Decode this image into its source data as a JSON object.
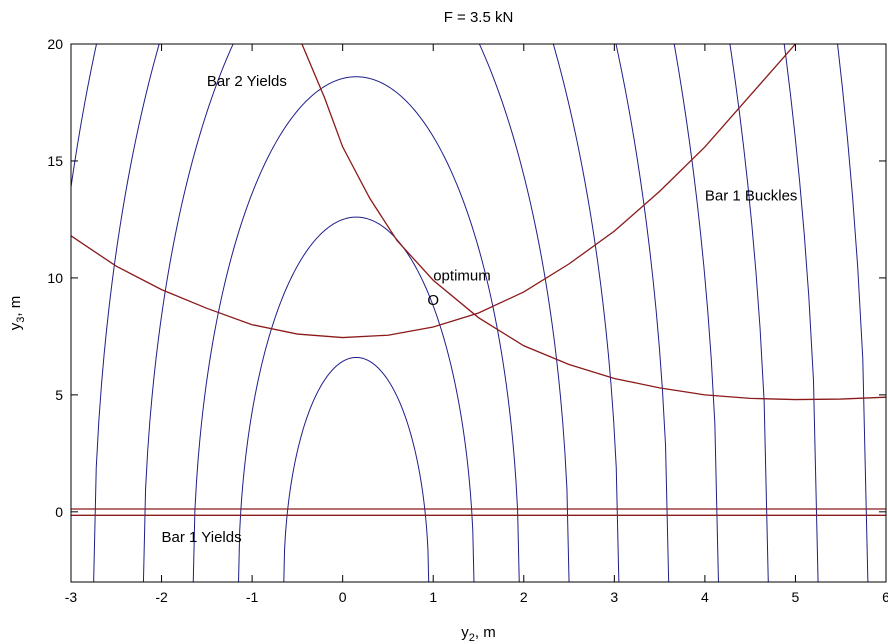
{
  "chart_data": {
    "type": "contour",
    "title": "F = 3.5 kN",
    "xlabel": "y",
    "xlabel_sub": "2",
    "xlabel_unit": ", m",
    "ylabel": "y",
    "ylabel_sub": "3",
    "ylabel_unit": ", m",
    "xlim": [
      -3,
      6
    ],
    "ylim": [
      -3,
      20
    ],
    "xticks": [
      "-3",
      "-2",
      "-1",
      "0",
      "1",
      "2",
      "3",
      "4",
      "5",
      "6"
    ],
    "yticks": [
      "0",
      "5",
      "10",
      "15",
      "20"
    ],
    "grid": false,
    "objective_contours": {
      "color": "#1f1f8a",
      "center": [
        0.15,
        -3
      ],
      "shape_exponent": 0.5,
      "levels": [
        0.8,
        1.3,
        1.8,
        2.35,
        2.9,
        3.45,
        4.0,
        4.55,
        5.1,
        5.65,
        6.2,
        6.75,
        7.3,
        7.85,
        8.4,
        8.95,
        9.5,
        10.05,
        10.6,
        11.15,
        11.7,
        12.25,
        12.8,
        13.35,
        13.9,
        14.45,
        15.0
      ]
    },
    "constraints": [
      {
        "name": "Bar 2 Yields",
        "color": "#8b1a1a",
        "points": [
          [
            -0.45,
            20
          ],
          [
            -0.2,
            17.7
          ],
          [
            0.0,
            15.6
          ],
          [
            0.3,
            13.4
          ],
          [
            0.6,
            11.6
          ],
          [
            1.0,
            9.9
          ],
          [
            1.5,
            8.3
          ],
          [
            2.0,
            7.1
          ],
          [
            2.5,
            6.3
          ],
          [
            3.0,
            5.7
          ],
          [
            3.5,
            5.3
          ],
          [
            4.0,
            5.0
          ],
          [
            4.5,
            4.85
          ],
          [
            5.0,
            4.8
          ],
          [
            5.5,
            4.82
          ],
          [
            6.0,
            4.9
          ]
        ]
      },
      {
        "name": "Bar 1 Buckles",
        "color": "#8b1a1a",
        "points": [
          [
            -3,
            11.8
          ],
          [
            -2.5,
            10.5
          ],
          [
            -2,
            9.5
          ],
          [
            -1.5,
            8.7
          ],
          [
            -1,
            8.0
          ],
          [
            -0.5,
            7.6
          ],
          [
            0,
            7.45
          ],
          [
            0.5,
            7.55
          ],
          [
            1,
            7.9
          ],
          [
            1.5,
            8.5
          ],
          [
            2,
            9.4
          ],
          [
            2.5,
            10.6
          ],
          [
            3,
            12.0
          ],
          [
            3.5,
            13.7
          ],
          [
            4,
            15.6
          ],
          [
            4.5,
            17.8
          ],
          [
            5.0,
            20.0
          ],
          [
            5.4,
            22.0
          ]
        ]
      },
      {
        "name": "Bar 1 Yields",
        "color": "#8b1a1a",
        "points": [
          [
            -3,
            0.12
          ],
          [
            6,
            0.12
          ]
        ]
      },
      {
        "name": "Bar 1 Yields b",
        "color": "#8b1a1a",
        "points": [
          [
            -3,
            -0.15
          ],
          [
            6,
            -0.15
          ]
        ]
      }
    ],
    "annotations": [
      {
        "text": "Bar 2 Yields",
        "x": -1.5,
        "y": 18.2
      },
      {
        "text": "Bar 1 Buckles",
        "x": 4.0,
        "y": 13.3
      },
      {
        "text": "Bar 1 Yields",
        "x": -2.0,
        "y": -1.3
      },
      {
        "text": "optimum",
        "x": 1.0,
        "y": 9.9
      }
    ],
    "optimum": {
      "label": "O",
      "x": 1.0,
      "y": 9.1
    }
  }
}
